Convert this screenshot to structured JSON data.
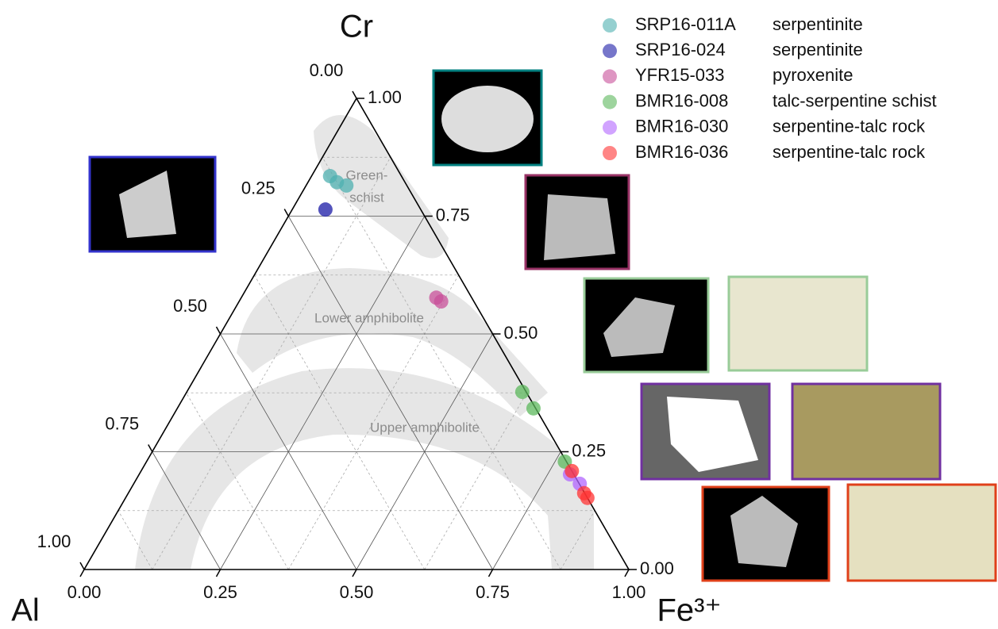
{
  "chart_data": {
    "type": "ternary",
    "axis_labels": {
      "top": "Cr",
      "left": "Al",
      "right": "Fe³⁺"
    },
    "cr_ticks": [
      {
        "value": 0,
        "label": "0.00"
      },
      {
        "value": 0.25,
        "label": "0.25"
      },
      {
        "value": 0.5,
        "label": "0.50"
      },
      {
        "value": 0.75,
        "label": "0.75"
      },
      {
        "value": 1,
        "label": "1.00"
      }
    ],
    "al_ticks": [
      {
        "value": 0,
        "label": "0.00"
      },
      {
        "value": 0.25,
        "label": "0.25"
      },
      {
        "value": 0.5,
        "label": "0.50"
      },
      {
        "value": 0.75,
        "label": "0.75"
      },
      {
        "value": 1,
        "label": "1.00"
      }
    ],
    "fe3_ticks": [
      {
        "value": 0,
        "label": "0.00"
      },
      {
        "value": 0.25,
        "label": "0.25"
      },
      {
        "value": 0.5,
        "label": "0.50"
      },
      {
        "value": 0.75,
        "label": "0.75"
      },
      {
        "value": 1,
        "label": "1.00"
      }
    ],
    "grid": true,
    "minor_grid": true,
    "fields": [
      {
        "lines": [
          "Green-",
          "schist"
        ]
      },
      {
        "lines": [
          "Lower amphibolite"
        ]
      },
      {
        "lines": [
          "Upper amphibolite"
        ]
      }
    ],
    "series": [
      {
        "name": "SRP16-011A",
        "rock": "serpentinite",
        "color": "#4fb0b0",
        "fe3": [
          0.034,
          0.053,
          0.074
        ],
        "cr": [
          0.835,
          0.822,
          0.815
        ]
      },
      {
        "name": "SRP16-024",
        "rock": "serpentinite",
        "color": "#1a1aa6",
        "fe3": [
          0.061
        ],
        "cr": [
          0.764
        ]
      },
      {
        "name": "YFR15-033",
        "rock": "pyroxenite",
        "color": "#c8509a",
        "fe3": [
          0.358,
          0.371
        ],
        "cr": [
          0.577,
          0.569
        ]
      },
      {
        "name": "BMR16-008",
        "rock": "talc-serpentine schist",
        "color": "#5cb85c",
        "fe3": [
          0.616,
          0.654,
          0.768
        ],
        "cr": [
          0.377,
          0.342,
          0.229
        ]
      },
      {
        "name": "BMR16-030",
        "rock": "serpentine-talc rock",
        "color": "#b266ff",
        "fe3": [
          0.791,
          0.819
        ],
        "cr": [
          0.202,
          0.182
        ]
      },
      {
        "name": "BMR16-036",
        "rock": "serpentine-talc rock",
        "color": "#ff3333",
        "fe3": [
          0.791,
          0.837,
          0.848
        ],
        "cr": [
          0.209,
          0.162,
          0.152
        ]
      }
    ]
  }
}
